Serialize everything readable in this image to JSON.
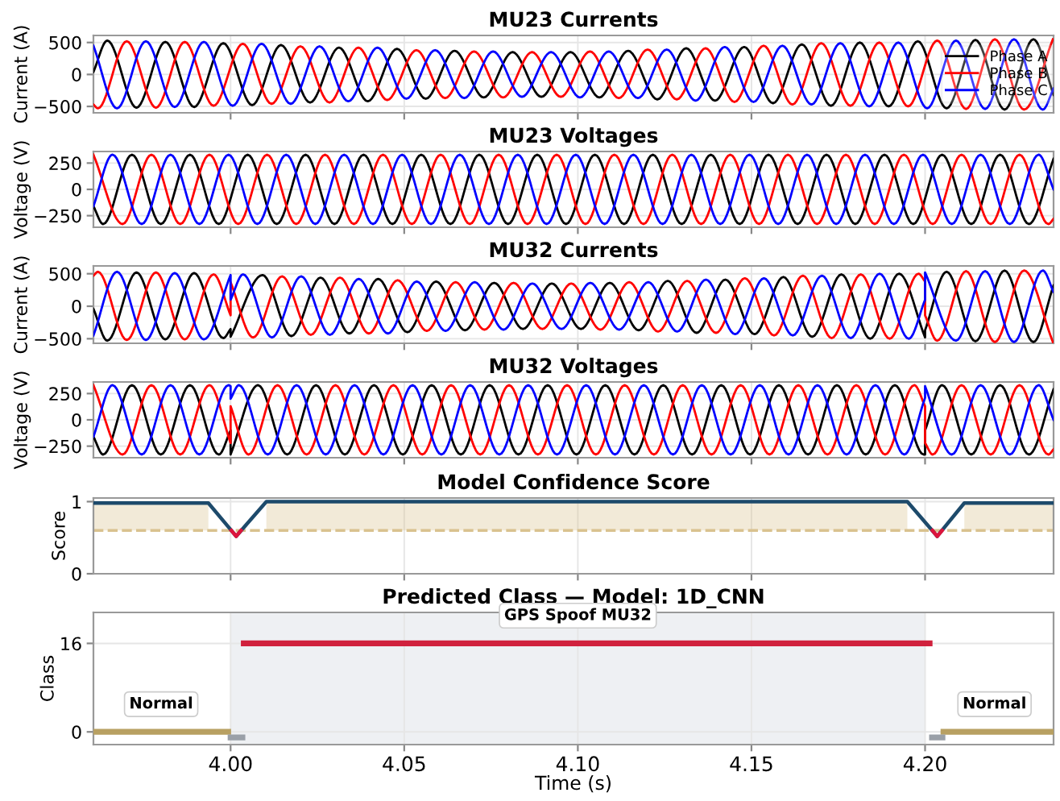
{
  "chart_data": [
    {
      "type": "line",
      "title": "MU23 Currents",
      "ylabel": "Current (A)",
      "xlim": [
        3.9605,
        4.237
      ],
      "ylim": [
        -600,
        610
      ],
      "yticks": [
        -500,
        0,
        500
      ],
      "xticks": [
        4.0,
        4.05,
        4.1,
        4.15,
        4.2
      ],
      "tick_labels": "y",
      "grid": true,
      "legend": "right",
      "series": [
        {
          "name": "Phase A",
          "color": "#000000",
          "x": [
            3.9605,
            3.9645,
            3.9729,
            3.9812,
            3.9895,
            3.9979,
            4.0062,
            4.0145,
            4.0229,
            4.0312,
            4.0395,
            4.0479,
            4.0562,
            4.0645,
            4.0729,
            4.0812,
            4.0895,
            4.0979,
            4.1062,
            4.1145,
            4.1229,
            4.1312,
            4.1395,
            4.1479,
            4.1562,
            4.1645,
            4.1729,
            4.1812,
            4.1895,
            4.1979,
            4.2062,
            4.2145,
            4.2229,
            4.2312,
            4.237
          ],
          "values": [
            40,
            530,
            -520,
            510,
            -510,
            490,
            -480,
            460,
            -440,
            420,
            -420,
            400,
            -380,
            370,
            -360,
            350,
            -350,
            350,
            -360,
            370,
            -390,
            410,
            -410,
            430,
            -450,
            470,
            -490,
            500,
            -500,
            520,
            -530,
            540,
            -550,
            550,
            -320
          ]
        },
        {
          "name": "Phase B",
          "color": "#ff0000",
          "x": [
            3.9605,
            3.9618,
            3.9701,
            3.9785,
            3.9868,
            3.9951,
            4.0035,
            4.0118,
            4.0201,
            4.0285,
            4.0368,
            4.0451,
            4.0535,
            4.0618,
            4.0701,
            4.0785,
            4.0868,
            4.0951,
            4.1035,
            4.1118,
            4.1201,
            4.1285,
            4.1368,
            4.1451,
            4.1535,
            4.1618,
            4.1701,
            4.1785,
            4.1868,
            4.1951,
            4.2035,
            4.2118,
            4.2201,
            4.2285,
            4.2368
          ],
          "values": [
            -470,
            -530,
            520,
            -520,
            510,
            -490,
            480,
            -460,
            440,
            -440,
            420,
            -400,
            380,
            -370,
            360,
            -360,
            350,
            -350,
            360,
            -370,
            390,
            -390,
            410,
            -430,
            450,
            -470,
            490,
            -490,
            500,
            -500,
            530,
            -540,
            550,
            -550,
            550
          ]
        },
        {
          "name": "Phase C",
          "color": "#0000ff",
          "x": [
            3.9605,
            3.9673,
            3.9756,
            3.9839,
            3.9923,
            4.0006,
            4.0089,
            4.0173,
            4.0256,
            4.0339,
            4.0423,
            4.0506,
            4.0589,
            4.0673,
            4.0756,
            4.0839,
            4.0923,
            4.1006,
            4.1089,
            4.1173,
            4.1256,
            4.1339,
            4.1423,
            4.1506,
            4.1589,
            4.1673,
            4.1756,
            4.1839,
            4.1923,
            4.2006,
            4.2089,
            4.2173,
            4.2256,
            4.2339,
            4.237
          ],
          "values": [
            450,
            -530,
            520,
            -510,
            510,
            -490,
            480,
            -460,
            440,
            -420,
            420,
            -380,
            380,
            -370,
            360,
            -350,
            350,
            -360,
            360,
            -370,
            390,
            -410,
            430,
            -430,
            450,
            -470,
            490,
            -500,
            500,
            -530,
            530,
            -540,
            550,
            -550,
            -220
          ]
        }
      ]
    },
    {
      "type": "line",
      "title": "MU23 Voltages",
      "ylabel": "Voltage (V)",
      "xlim": [
        3.9605,
        4.237
      ],
      "ylim": [
        -360,
        360
      ],
      "yticks": [
        -250,
        0,
        250
      ],
      "xticks": [
        4.0,
        4.05,
        4.1,
        4.15,
        4.2
      ],
      "tick_labels": "y",
      "grid": true,
      "series": [
        {
          "color": "#000000",
          "x": [
            3.9605,
            3.9633,
            3.9716,
            3.9799,
            3.9883,
            3.9966,
            4.0049,
            4.0133,
            4.0216,
            4.0299,
            4.0383,
            4.0466,
            4.0549,
            4.0633,
            4.0716,
            4.0799,
            4.0883,
            4.0966,
            4.1049,
            4.1133,
            4.1216,
            4.1299,
            4.1383,
            4.1466,
            4.1549,
            4.1633,
            4.1716,
            4.1799,
            4.1883,
            4.1966,
            4.2049,
            4.2133,
            4.2216,
            4.2299,
            4.237
          ],
          "values": [
            -160,
            -330,
            330,
            -330,
            330,
            -330,
            330,
            -330,
            330,
            -330,
            330,
            -330,
            330,
            -330,
            330,
            -330,
            330,
            -330,
            330,
            -330,
            330,
            -330,
            330,
            -330,
            330,
            -330,
            330,
            -330,
            330,
            -330,
            330,
            -330,
            330,
            -330,
            290
          ]
        },
        {
          "color": "#ff0000",
          "x": [
            3.9605,
            3.9689,
            3.9772,
            3.9855,
            3.9939,
            4.0022,
            4.0105,
            4.0189,
            4.0272,
            4.0355,
            4.0439,
            4.0522,
            4.0605,
            4.0689,
            4.0772,
            4.0855,
            4.0939,
            4.1022,
            4.1105,
            4.1189,
            4.1272,
            4.1355,
            4.1439,
            4.1522,
            4.1605,
            4.1689,
            4.1772,
            4.1855,
            4.1939,
            4.2022,
            4.2105,
            4.2189,
            4.2272,
            4.2355,
            4.237
          ],
          "values": [
            330,
            -330,
            330,
            -330,
            330,
            -330,
            330,
            -330,
            330,
            -330,
            330,
            -330,
            330,
            -330,
            330,
            -330,
            330,
            -330,
            330,
            -330,
            330,
            -330,
            330,
            -330,
            330,
            -330,
            330,
            -330,
            330,
            -330,
            330,
            -330,
            330,
            -330,
            -280
          ]
        },
        {
          "color": "#0000ff",
          "x": [
            3.9605,
            3.966,
            3.9744,
            3.9827,
            3.991,
            3.9994,
            4.0077,
            4.016,
            4.0244,
            4.0327,
            4.041,
            4.0494,
            4.0577,
            4.066,
            4.0744,
            4.0827,
            4.091,
            4.0994,
            4.1077,
            4.116,
            4.1244,
            4.1327,
            4.141,
            4.1494,
            4.1577,
            4.166,
            4.1744,
            4.1827,
            4.191,
            4.1994,
            4.2077,
            4.216,
            4.2244,
            4.2327,
            4.237
          ],
          "values": [
            -160,
            330,
            -330,
            330,
            -330,
            330,
            -330,
            330,
            -330,
            330,
            -330,
            330,
            -330,
            330,
            -330,
            330,
            -330,
            330,
            -330,
            330,
            -330,
            330,
            -330,
            330,
            -330,
            330,
            -330,
            330,
            -330,
            330,
            -330,
            330,
            -330,
            330,
            0
          ]
        }
      ]
    },
    {
      "type": "line",
      "title": "MU32 Currents",
      "ylabel": "Current (A)",
      "xlim": [
        3.9605,
        4.237
      ],
      "ylim": [
        -570,
        620
      ],
      "yticks": [
        -500,
        0,
        500
      ],
      "xticks": [
        4.0,
        4.05,
        4.1,
        4.15,
        4.2
      ],
      "tick_labels": "y",
      "grid": true,
      "series": [
        {
          "color": "#000000",
          "x": [
            3.9605,
            3.9645,
            3.9729,
            3.9812,
            3.9895,
            3.9979,
            4.0,
            4.0,
            4.0092,
            4.0175,
            4.0259,
            4.0342,
            4.0425,
            4.0509,
            4.0592,
            4.0675,
            4.0759,
            4.0842,
            4.0925,
            4.1009,
            4.1092,
            4.1175,
            4.1259,
            4.1342,
            4.1425,
            4.1509,
            4.1592,
            4.1675,
            4.1759,
            4.1842,
            4.1925,
            4.2,
            4.2,
            4.2062,
            4.2145,
            4.2229,
            4.2312,
            4.237
          ],
          "values": [
            -40,
            -530,
            520,
            -510,
            510,
            -490,
            -350,
            -470,
            480,
            -460,
            440,
            -420,
            420,
            -400,
            380,
            -370,
            360,
            -350,
            350,
            -350,
            360,
            -370,
            390,
            -410,
            410,
            -430,
            450,
            -470,
            490,
            -500,
            500,
            -480,
            -370,
            530,
            -540,
            550,
            -550,
            320
          ]
        },
        {
          "color": "#ff0000",
          "x": [
            3.9605,
            3.9618,
            3.9701,
            3.9785,
            3.9868,
            3.9951,
            4.0,
            4.0,
            4.0065,
            4.0148,
            4.0231,
            4.0315,
            4.0398,
            4.0481,
            4.0565,
            4.0648,
            4.0731,
            4.0815,
            4.0898,
            4.0981,
            4.1065,
            4.1148,
            4.1231,
            4.1315,
            4.1398,
            4.1481,
            4.1565,
            4.1648,
            4.1731,
            4.1815,
            4.1898,
            4.1981,
            4.2,
            4.2,
            4.2035,
            4.2118,
            4.2201,
            4.2285,
            4.2368
          ],
          "values": [
            470,
            530,
            -520,
            520,
            -510,
            490,
            -140,
            370,
            -480,
            460,
            -440,
            440,
            -420,
            400,
            -380,
            370,
            -360,
            360,
            -350,
            350,
            -360,
            370,
            -390,
            390,
            -410,
            430,
            -450,
            470,
            -490,
            490,
            -500,
            500,
            380,
            -140,
            -530,
            540,
            -550,
            550,
            -550
          ]
        },
        {
          "color": "#0000ff",
          "x": [
            3.9605,
            3.9673,
            3.9756,
            3.9839,
            3.9923,
            4.0,
            4.0,
            4.0036,
            4.0119,
            4.0203,
            4.0286,
            4.0369,
            4.0453,
            4.0536,
            4.0619,
            4.0703,
            4.0786,
            4.0869,
            4.0953,
            4.1036,
            4.1119,
            4.1203,
            4.1286,
            4.1369,
            4.1453,
            4.1536,
            4.1619,
            4.1703,
            4.1786,
            4.1869,
            4.1953,
            4.2,
            4.2,
            4.2089,
            4.2173,
            4.2256,
            4.2339,
            4.237
          ],
          "values": [
            -450,
            530,
            -520,
            510,
            -510,
            480,
            100,
            490,
            -480,
            460,
            -440,
            420,
            -420,
            380,
            -380,
            370,
            -360,
            350,
            -350,
            360,
            -360,
            370,
            -390,
            410,
            -430,
            430,
            -450,
            470,
            -490,
            500,
            -500,
            100,
            520,
            -530,
            540,
            -550,
            550,
            220
          ]
        }
      ]
    },
    {
      "type": "line",
      "title": "MU32 Voltages",
      "ylabel": "Voltage (V)",
      "xlim": [
        3.9605,
        4.237
      ],
      "ylim": [
        -360,
        360
      ],
      "yticks": [
        -250,
        0,
        250
      ],
      "xticks": [
        4.0,
        4.05,
        4.1,
        4.15,
        4.2
      ],
      "tick_labels": "y",
      "grid": true,
      "series": [
        {
          "color": "#000000",
          "x": [
            3.9605,
            3.9633,
            3.9716,
            3.9799,
            3.9883,
            3.9966,
            4.0,
            4.0,
            4.0079,
            4.0163,
            4.0246,
            4.0329,
            4.0413,
            4.0496,
            4.0579,
            4.0663,
            4.0746,
            4.0829,
            4.0913,
            4.0996,
            4.1079,
            4.1163,
            4.1246,
            4.1329,
            4.1413,
            4.1496,
            4.1579,
            4.1663,
            4.1746,
            4.1829,
            4.1913,
            4.1996,
            4.2,
            4.2,
            4.2049,
            4.2133,
            4.2216,
            4.2299,
            4.237
          ],
          "values": [
            -160,
            -330,
            330,
            -330,
            330,
            -330,
            -100,
            -330,
            330,
            -330,
            330,
            -330,
            330,
            -330,
            330,
            -330,
            330,
            -330,
            330,
            -330,
            330,
            -330,
            330,
            -330,
            330,
            -330,
            330,
            -330,
            330,
            -330,
            330,
            -330,
            -330,
            -100,
            330,
            -330,
            330,
            -330,
            290
          ]
        },
        {
          "color": "#ff0000",
          "x": [
            3.9605,
            3.9689,
            3.9772,
            3.9855,
            3.9939,
            4.0,
            4.0,
            4.0052,
            4.0135,
            4.0219,
            4.0302,
            4.0385,
            4.0469,
            4.0552,
            4.0635,
            4.0719,
            4.0802,
            4.0885,
            4.0969,
            4.1052,
            4.1135,
            4.1219,
            4.1302,
            4.1385,
            4.1469,
            4.1552,
            4.1635,
            4.1719,
            4.1802,
            4.1885,
            4.1969,
            4.2,
            4.2,
            4.2022,
            4.2105,
            4.2189,
            4.2272,
            4.2355,
            4.237
          ],
          "values": [
            330,
            -330,
            330,
            -330,
            330,
            -220,
            130,
            -330,
            330,
            -330,
            330,
            -330,
            330,
            -330,
            330,
            -330,
            330,
            -330,
            330,
            -330,
            330,
            -330,
            330,
            -330,
            330,
            -330,
            330,
            -330,
            330,
            -330,
            330,
            130,
            -220,
            -330,
            330,
            -330,
            330,
            -330,
            -280
          ]
        },
        {
          "color": "#0000ff",
          "x": [
            3.9605,
            3.966,
            3.9744,
            3.9827,
            3.991,
            3.9994,
            4.0,
            4.0,
            4.0024,
            4.0107,
            4.019,
            4.0274,
            4.0357,
            4.044,
            4.0524,
            4.0607,
            4.069,
            4.0774,
            4.0857,
            4.094,
            4.1024,
            4.1107,
            4.119,
            4.1274,
            4.1357,
            4.144,
            4.1524,
            4.1607,
            4.169,
            4.1774,
            4.1857,
            4.194,
            4.2,
            4.2,
            4.2077,
            4.216,
            4.2244,
            4.2327,
            4.237
          ],
          "values": [
            -160,
            330,
            -330,
            330,
            -330,
            330,
            320,
            200,
            330,
            -330,
            330,
            -330,
            330,
            -330,
            330,
            -330,
            330,
            -330,
            330,
            -330,
            330,
            -330,
            330,
            -330,
            330,
            -330,
            330,
            -330,
            330,
            -330,
            330,
            -330,
            210,
            320,
            -330,
            330,
            -330,
            330,
            0
          ]
        }
      ]
    },
    {
      "type": "line",
      "title": "Model Confidence Score",
      "ylabel": "Score",
      "xlim": [
        3.9605,
        4.237
      ],
      "ylim": [
        0,
        1.05
      ],
      "yticks": [
        0,
        1
      ],
      "xticks": [
        4.0,
        4.05,
        4.1,
        4.15,
        4.2
      ],
      "tick_labels": "y",
      "grid": true,
      "ref_lines": [
        {
          "axis": "y",
          "value": 0.6,
          "color": "#d9c28f",
          "line_style": "dashed"
        }
      ],
      "series": [
        {
          "color": "#1d4a6b",
          "x": [
            3.9605,
            3.9936,
            4.0016,
            4.0103,
            4.1949,
            4.2035,
            4.2113,
            4.237
          ],
          "values": [
            0.98,
            0.98,
            0.52,
            1.0,
            1.0,
            0.52,
            0.98,
            0.98
          ],
          "lower": [
            0.6,
            0.6,
            null,
            0.6,
            0.6,
            null,
            0.6,
            0.6
          ],
          "upper": [
            0.98,
            0.98,
            null,
            1.0,
            1.0,
            null,
            0.98,
            0.98
          ]
        },
        {
          "color": "#dc143c",
          "x": [
            4.0002,
            4.0016,
            4.003,
            4.1,
            4.2021,
            4.2035,
            4.2049
          ],
          "values": [
            0.6,
            0.52,
            0.6,
            null,
            0.6,
            0.52,
            0.6
          ]
        }
      ]
    },
    {
      "type": "line",
      "title": "Predicted Class — Model: 1D_CNN",
      "ylabel": "Class",
      "xlabel": "Time (s)",
      "xlim": [
        3.9605,
        4.237
      ],
      "ylim": [
        -2.3,
        21.6
      ],
      "yticks": [
        0,
        16
      ],
      "xticks": [
        {
          "value": 4.0,
          "label": "4.00"
        },
        {
          "value": 4.05,
          "label": "4.05"
        },
        {
          "value": 4.1,
          "label": "4.10"
        },
        {
          "value": 4.15,
          "label": "4.15"
        },
        {
          "value": 4.2,
          "label": "4.20"
        }
      ],
      "grid": true,
      "bands": [
        {
          "axis": "x",
          "from": 4.0,
          "to": 4.2,
          "color": "#eef0f3"
        }
      ],
      "annotations": [
        {
          "text": "Normal",
          "x": 3.98,
          "y": 0
        },
        {
          "text": "GPS Spoof MU32",
          "x": 4.1,
          "y": 16
        },
        {
          "text": "Normal",
          "x": 4.22,
          "y": 0
        }
      ],
      "series": [
        {
          "color": "#b8a062",
          "x": [
            3.9605,
            3.9993,
            4.1,
            4.2053,
            4.237
          ],
          "values": [
            0,
            0,
            null,
            0,
            0
          ]
        },
        {
          "color": "#9aa0a8",
          "x": [
            4.0,
            4.0034,
            4.1,
            4.202,
            4.205
          ],
          "values": [
            -1,
            -1,
            null,
            -1,
            -1
          ]
        },
        {
          "color": "#d0213d",
          "x": [
            4.0038,
            4.2013
          ],
          "values": [
            16,
            16
          ]
        }
      ]
    }
  ]
}
